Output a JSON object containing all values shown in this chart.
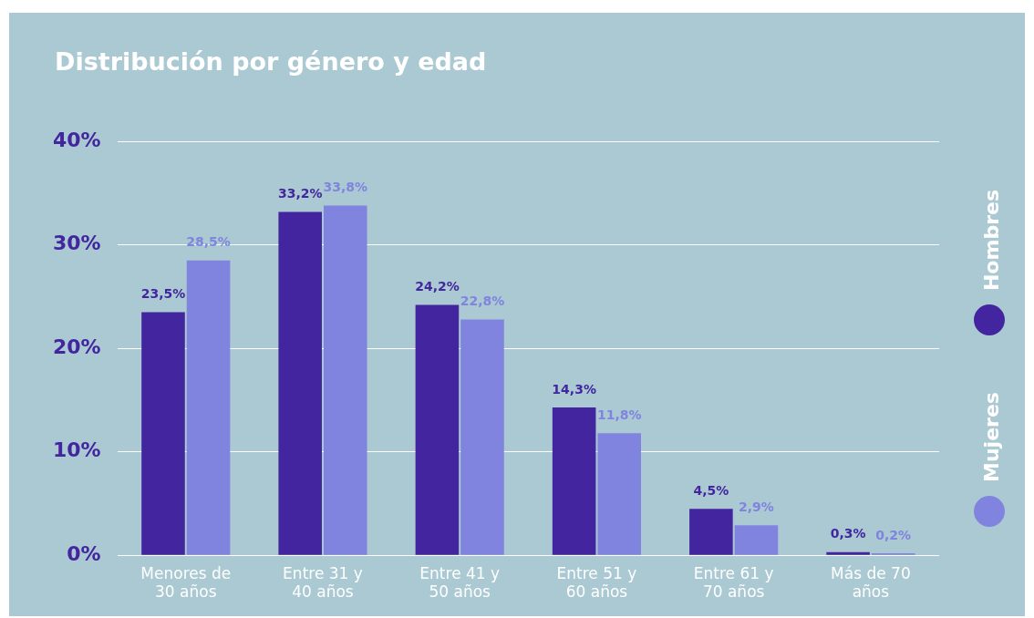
{
  "chart_data": {
    "type": "bar",
    "title": "Distribución por género y edad",
    "categories": [
      "Menores de 30 años",
      "Entre 31 y 40 años",
      "Entre 41 y 50 años",
      "Entre 51 y 60 años",
      "Entre 61 y 70 años",
      "Más de 70 años"
    ],
    "series": [
      {
        "name": "Hombres",
        "color": "#43269f",
        "values": [
          23.5,
          33.2,
          24.2,
          14.3,
          4.5,
          0.3
        ],
        "value_labels": [
          "23,5%",
          "33,2%",
          "24,2%",
          "14,3%",
          "4,5%",
          "0,3%"
        ]
      },
      {
        "name": "Mujeres",
        "color": "#8184de",
        "values": [
          28.5,
          33.8,
          22.8,
          11.8,
          2.9,
          0.2
        ],
        "value_labels": [
          "28,5%",
          "33,8%",
          "22,8%",
          "11,8%",
          "2,9%",
          "0,2%"
        ]
      }
    ],
    "ylim": [
      0,
      40
    ],
    "yticks": [
      {
        "value": 0,
        "label": "0%"
      },
      {
        "value": 10,
        "label": "10%"
      },
      {
        "value": 20,
        "label": "20%"
      },
      {
        "value": 30,
        "label": "30%"
      },
      {
        "value": 40,
        "label": "40%"
      }
    ],
    "grid": "y",
    "legend": "right"
  }
}
